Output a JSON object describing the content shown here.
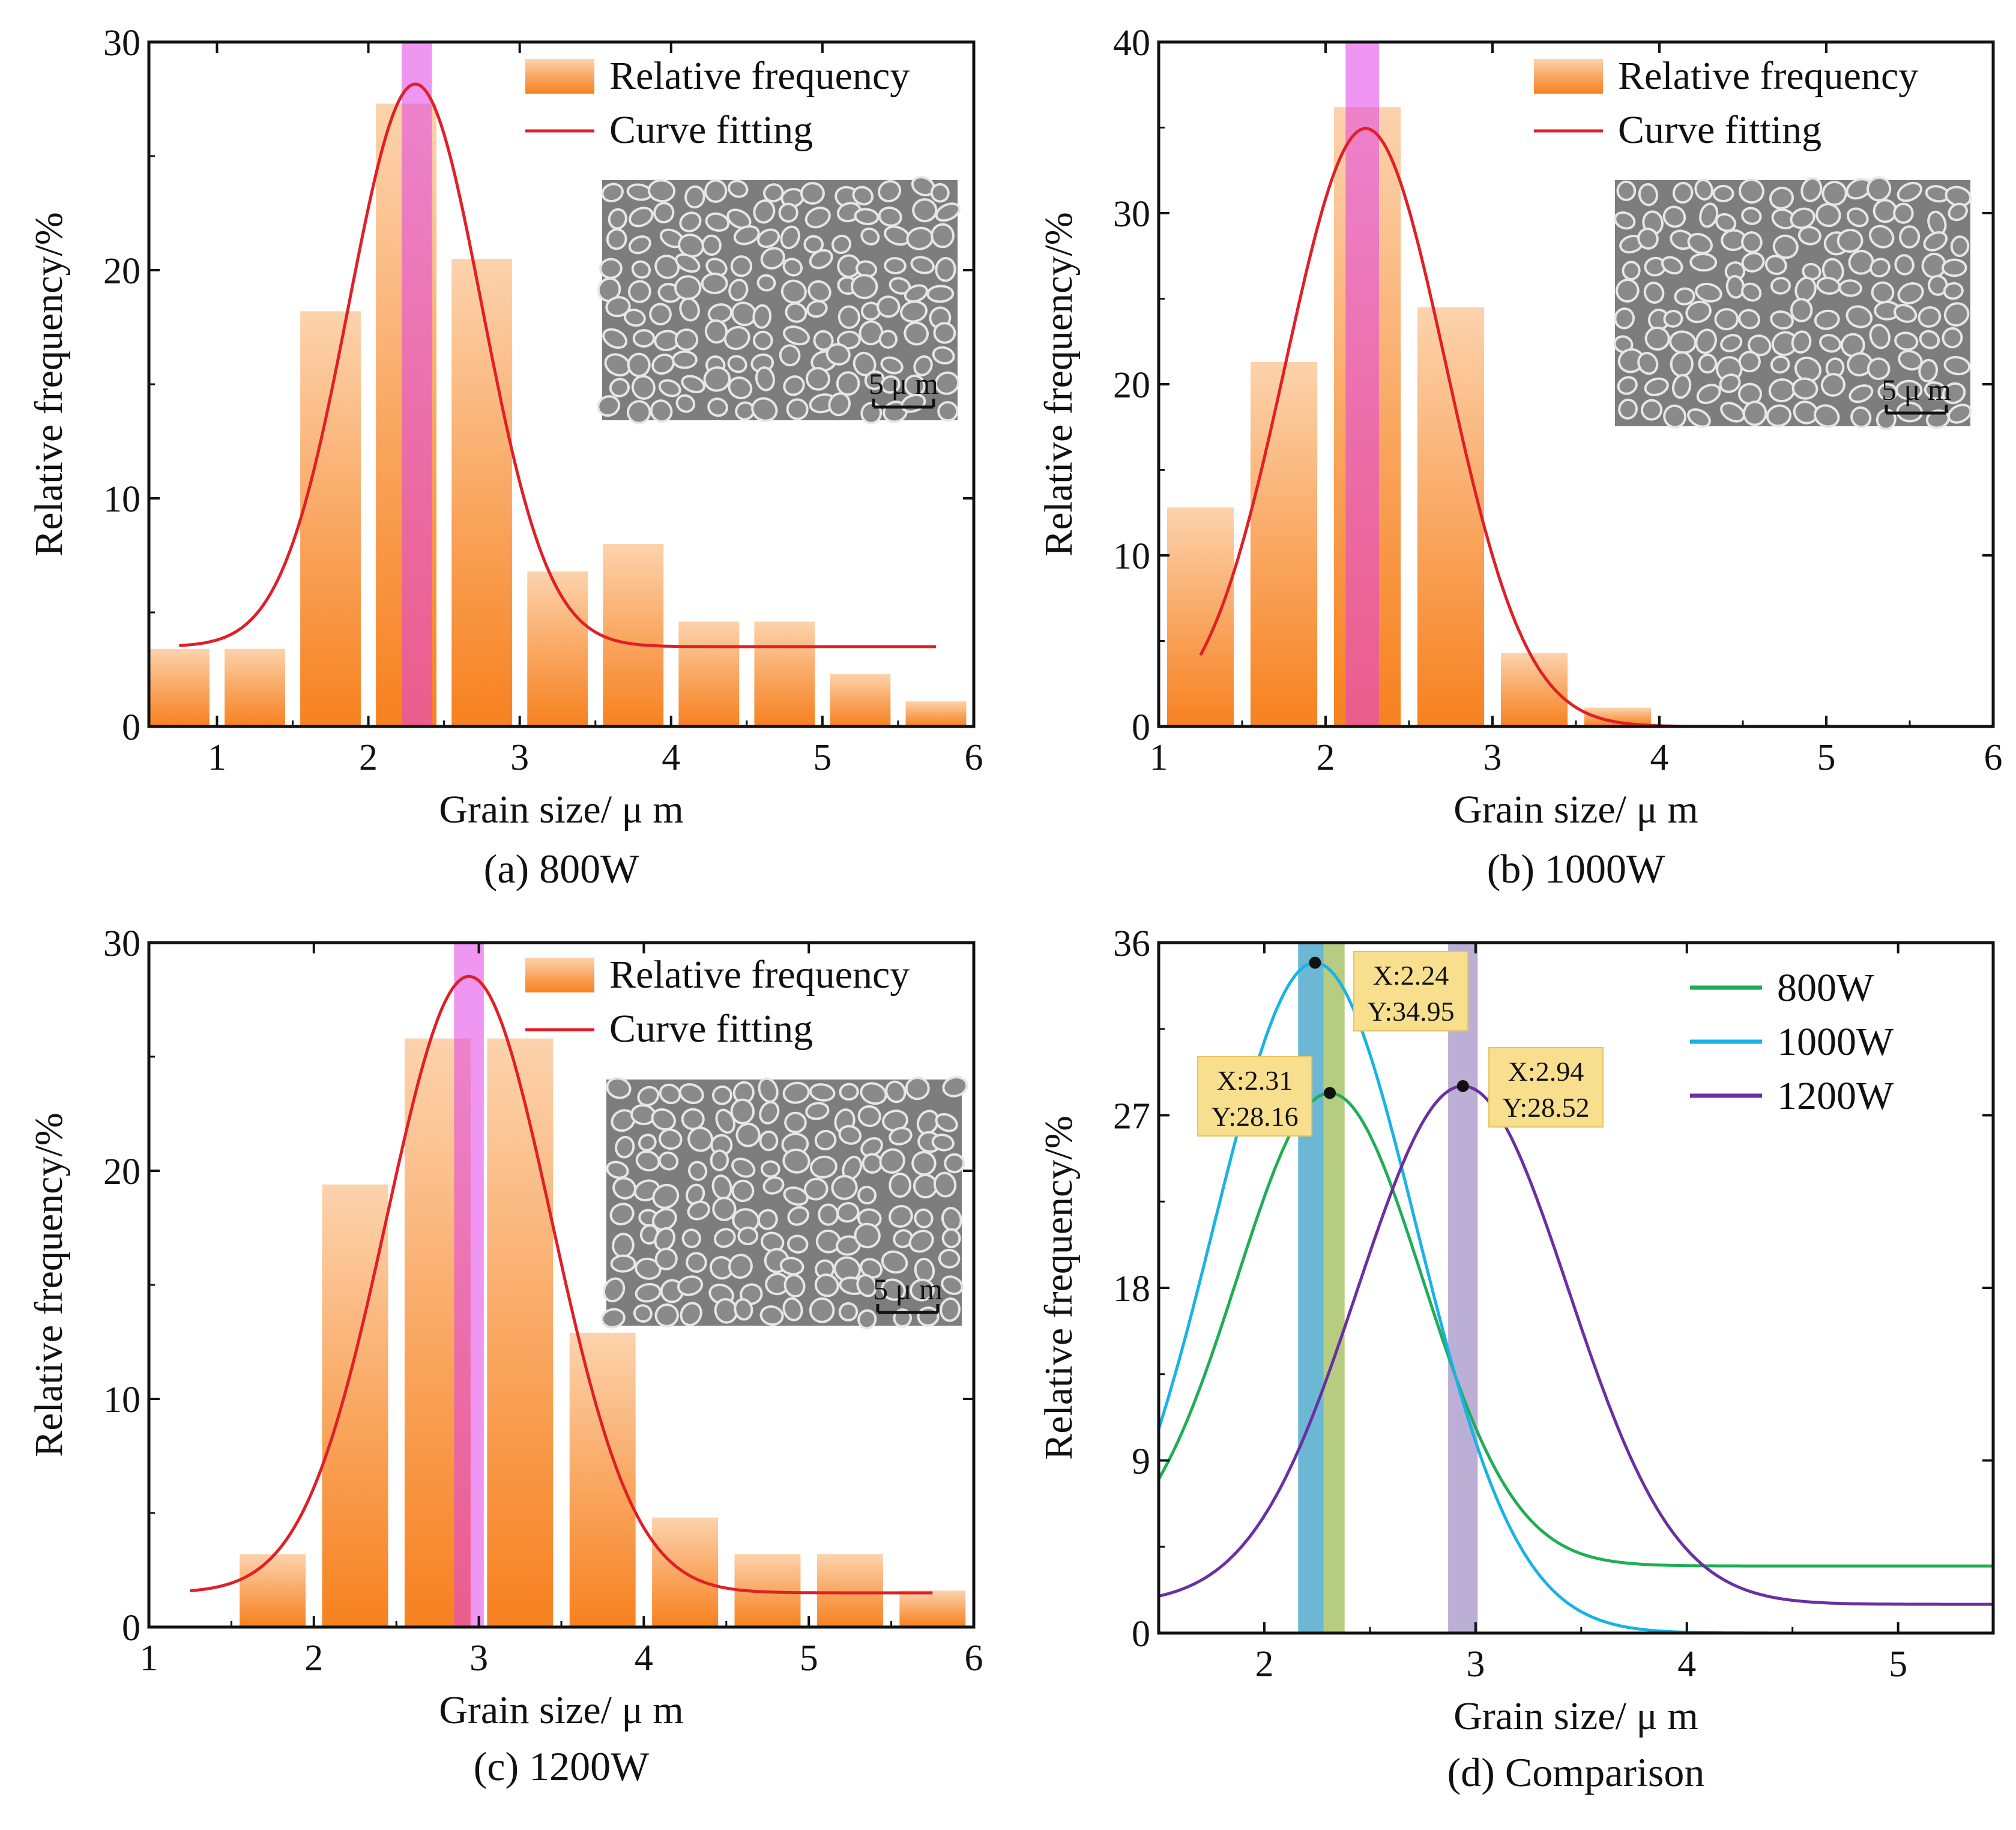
{
  "chart_data": [
    {
      "id": "a",
      "type": "bar",
      "caption": "(a) 800W",
      "xlabel": "Grain size/ μ m",
      "ylabel": "Relative frequency/%",
      "xlim": [
        0.55,
        6.0
      ],
      "ylim": [
        0,
        30
      ],
      "xticks": [
        1,
        2,
        3,
        4,
        5,
        6
      ],
      "yticks": [
        0,
        10,
        20,
        30
      ],
      "bar_width": 0.4,
      "bars": [
        {
          "x": 0.75,
          "value": 3.4
        },
        {
          "x": 1.25,
          "value": 3.4
        },
        {
          "x": 1.75,
          "value": 18.2
        },
        {
          "x": 2.25,
          "value": 27.3
        },
        {
          "x": 2.75,
          "value": 20.5
        },
        {
          "x": 3.25,
          "value": 6.8
        },
        {
          "x": 3.75,
          "value": 8.0
        },
        {
          "x": 4.25,
          "value": 4.6
        },
        {
          "x": 4.75,
          "value": 4.6
        },
        {
          "x": 5.25,
          "value": 2.3
        },
        {
          "x": 5.75,
          "value": 1.1
        }
      ],
      "fit": {
        "baseline": 3.5,
        "amplitude": 24.66,
        "center": 2.31,
        "sigma": 0.44,
        "xrange": [
          0.75,
          5.75
        ]
      },
      "peak_band": [
        2.22,
        2.42
      ],
      "legend": [
        "Relative frequency",
        "Curve fitting"
      ],
      "inset": {
        "scale_label": "5 μ m",
        "texture": 1
      }
    },
    {
      "id": "b",
      "type": "bar",
      "caption": "(b) 1000W",
      "xlabel": "Grain size/ μ m",
      "ylabel": "Relative frequency/%",
      "xlim": [
        1.0,
        6.0
      ],
      "ylim": [
        0,
        40
      ],
      "xticks": [
        1,
        2,
        3,
        4,
        5,
        6
      ],
      "yticks": [
        0,
        10,
        20,
        30,
        40
      ],
      "bar_width": 0.4,
      "bars": [
        {
          "x": 1.25,
          "value": 12.8
        },
        {
          "x": 1.75,
          "value": 21.3
        },
        {
          "x": 2.25,
          "value": 36.2
        },
        {
          "x": 2.75,
          "value": 24.5
        },
        {
          "x": 3.25,
          "value": 4.3
        },
        {
          "x": 3.75,
          "value": 1.1
        }
      ],
      "fit": {
        "baseline": 0,
        "amplitude": 34.95,
        "center": 2.24,
        "sigma": 0.48,
        "xrange": [
          1.25,
          5.75
        ]
      },
      "peak_band": [
        2.12,
        2.32
      ],
      "legend": [
        "Relative frequency",
        "Curve fitting"
      ],
      "inset": {
        "scale_label": "5 μ m",
        "texture": 2
      }
    },
    {
      "id": "c",
      "type": "bar",
      "caption": "(c) 1200W",
      "xlabel": "Grain size/ μ m",
      "ylabel": "Relative frequency/%",
      "xlim": [
        1.0,
        6.0
      ],
      "ylim": [
        0,
        30
      ],
      "xticks": [
        1,
        2,
        3,
        4,
        5,
        6
      ],
      "yticks": [
        0,
        10,
        20,
        30
      ],
      "bar_width": 0.4,
      "bars": [
        {
          "x": 1.75,
          "value": 3.2
        },
        {
          "x": 2.25,
          "value": 19.4
        },
        {
          "x": 2.75,
          "value": 25.8
        },
        {
          "x": 3.25,
          "value": 25.8
        },
        {
          "x": 3.75,
          "value": 12.9
        },
        {
          "x": 4.25,
          "value": 4.8
        },
        {
          "x": 4.75,
          "value": 3.2
        },
        {
          "x": 5.25,
          "value": 3.2
        },
        {
          "x": 5.75,
          "value": 1.6
        }
      ],
      "fit": {
        "baseline": 1.5,
        "amplitude": 27.02,
        "center": 2.94,
        "sigma": 0.5,
        "xrange": [
          1.25,
          5.75
        ]
      },
      "peak_band": [
        2.85,
        3.03
      ],
      "legend": [
        "Relative frequency",
        "Curve fitting"
      ],
      "inset": {
        "scale_label": "5 μ m",
        "texture": 3
      }
    },
    {
      "id": "d",
      "type": "line",
      "caption": "(d) Comparison",
      "xlabel": "Grain size/ μ m",
      "ylabel": "Relative frequency/%",
      "xlim": [
        1.5,
        5.45
      ],
      "ylim": [
        0,
        36
      ],
      "xticks": [
        2,
        3,
        4,
        5
      ],
      "yticks": [
        0,
        9,
        18,
        27,
        36
      ],
      "series": [
        {
          "name": "800W",
          "color": "#1fae56",
          "baseline": 3.5,
          "amplitude": 24.66,
          "center": 2.31,
          "sigma": 0.44
        },
        {
          "name": "1000W",
          "color": "#19b2e6",
          "baseline": 0,
          "amplitude": 34.95,
          "center": 2.24,
          "sigma": 0.48
        },
        {
          "name": "1200W",
          "color": "#6a2fa0",
          "baseline": 1.5,
          "amplitude": 27.02,
          "center": 2.94,
          "sigma": 0.5
        }
      ],
      "bands": [
        {
          "range": [
            2.16,
            2.28
          ],
          "color": "#3a9fc6"
        },
        {
          "range": [
            2.28,
            2.38
          ],
          "color": "#9dbb56"
        },
        {
          "range": [
            2.87,
            3.01
          ],
          "color": "#a594c7"
        }
      ],
      "annotations": [
        {
          "x": 2.24,
          "y": 34.95,
          "line1": "X:2.24",
          "line2": "Y:34.95"
        },
        {
          "x": 2.31,
          "y": 28.16,
          "line1": "X:2.31",
          "line2": "Y:28.16"
        },
        {
          "x": 2.94,
          "y": 28.52,
          "line1": "X:2.94",
          "line2": "Y:28.52"
        }
      ]
    }
  ]
}
